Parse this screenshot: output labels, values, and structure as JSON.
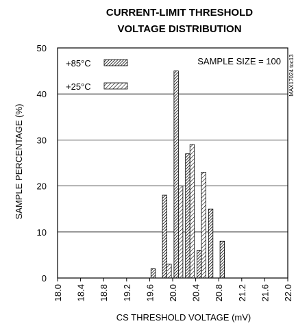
{
  "chart_data": {
    "type": "bar",
    "title_line1": "CURRENT-LIMIT THRESHOLD",
    "title_line2": "VOLTAGE DISTRIBUTION",
    "xlabel": "CS THRESHOLD VOLTAGE (mV)",
    "ylabel": "SAMPLE PERCENTAGE (%)",
    "x_ticks": [
      "18.0",
      "18.4",
      "18.8",
      "19.2",
      "19.6",
      "20.0",
      "20.4",
      "20.8",
      "21.2",
      "21.6",
      "22.0"
    ],
    "y_ticks": [
      "0",
      "10",
      "20",
      "30",
      "40",
      "50"
    ],
    "xlim": [
      18.0,
      22.0
    ],
    "ylim": [
      0,
      50
    ],
    "grid": true,
    "annotation": "SAMPLE SIZE = 100",
    "side_label": "MAX17024 toc13",
    "legend_position": "top-left",
    "series": [
      {
        "name": "+85°C",
        "pattern": "dense-hatch",
        "points": [
          {
            "x": 19.7,
            "y": 2
          },
          {
            "x": 19.9,
            "y": 18
          },
          {
            "x": 20.1,
            "y": 45
          },
          {
            "x": 20.3,
            "y": 27
          },
          {
            "x": 20.5,
            "y": 6
          },
          {
            "x": 20.7,
            "y": 15
          },
          {
            "x": 20.9,
            "y": 8
          }
        ]
      },
      {
        "name": "+25°C",
        "pattern": "hatch",
        "points": [
          {
            "x": 19.9,
            "y": 3
          },
          {
            "x": 20.1,
            "y": 20
          },
          {
            "x": 20.3,
            "y": 29
          },
          {
            "x": 20.5,
            "y": 23
          }
        ]
      }
    ]
  }
}
